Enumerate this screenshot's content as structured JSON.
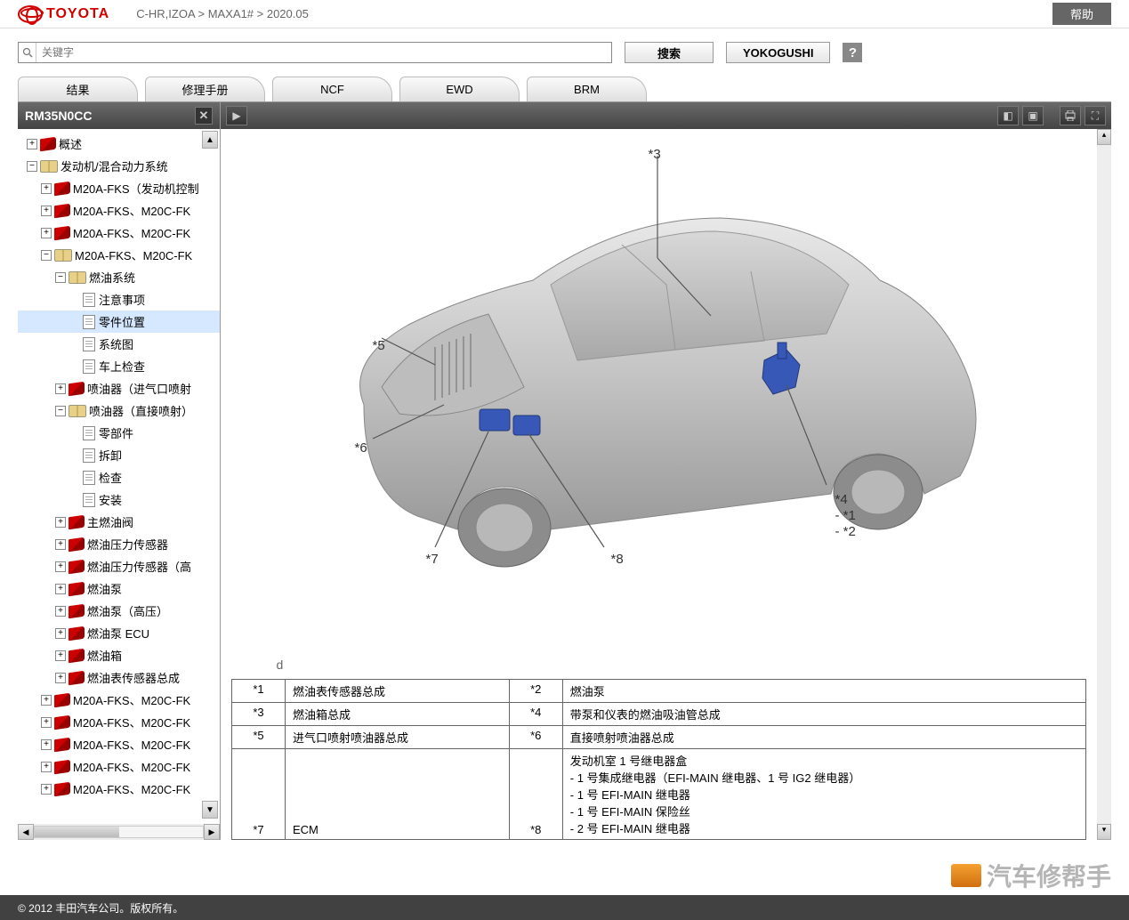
{
  "header": {
    "brand": "TOYOTA",
    "breadcrumb": "C-HR,IZOA > MAXA1# > 2020.05",
    "help": "帮助"
  },
  "search": {
    "placeholder": "关键字",
    "searchBtn": "搜索",
    "yokogushi": "YOKOGUSHI",
    "helpIcon": "?"
  },
  "tabs": [
    "结果",
    "修理手册",
    "NCF",
    "EWD",
    "BRM"
  ],
  "sidebar": {
    "title": "RM35N0CC",
    "tree": [
      {
        "lvl": 0,
        "exp": "+",
        "icon": "red",
        "label": "概述"
      },
      {
        "lvl": 0,
        "exp": "-",
        "icon": "open",
        "label": "发动机/混合动力系统"
      },
      {
        "lvl": 1,
        "exp": "+",
        "icon": "red",
        "label": "M20A-FKS（发动机控制"
      },
      {
        "lvl": 1,
        "exp": "+",
        "icon": "red",
        "label": "M20A-FKS、M20C-FK"
      },
      {
        "lvl": 1,
        "exp": "+",
        "icon": "red",
        "label": "M20A-FKS、M20C-FK"
      },
      {
        "lvl": 1,
        "exp": "-",
        "icon": "open",
        "label": "M20A-FKS、M20C-FK"
      },
      {
        "lvl": 2,
        "exp": "-",
        "icon": "open",
        "label": "燃油系统"
      },
      {
        "lvl": 3,
        "exp": "",
        "icon": "page",
        "label": "注意事项"
      },
      {
        "lvl": 3,
        "exp": "",
        "icon": "page",
        "label": "零件位置",
        "selected": true
      },
      {
        "lvl": 3,
        "exp": "",
        "icon": "page",
        "label": "系统图"
      },
      {
        "lvl": 3,
        "exp": "",
        "icon": "page",
        "label": "车上检查"
      },
      {
        "lvl": 2,
        "exp": "+",
        "icon": "red",
        "label": "喷油器（进气口喷射"
      },
      {
        "lvl": 2,
        "exp": "-",
        "icon": "open",
        "label": "喷油器（直接喷射）"
      },
      {
        "lvl": 3,
        "exp": "",
        "icon": "page",
        "label": "零部件"
      },
      {
        "lvl": 3,
        "exp": "",
        "icon": "page",
        "label": "拆卸"
      },
      {
        "lvl": 3,
        "exp": "",
        "icon": "page",
        "label": "检查"
      },
      {
        "lvl": 3,
        "exp": "",
        "icon": "page",
        "label": "安装"
      },
      {
        "lvl": 2,
        "exp": "+",
        "icon": "red",
        "label": "主燃油阀"
      },
      {
        "lvl": 2,
        "exp": "+",
        "icon": "red",
        "label": "燃油压力传感器"
      },
      {
        "lvl": 2,
        "exp": "+",
        "icon": "red",
        "label": "燃油压力传感器（高"
      },
      {
        "lvl": 2,
        "exp": "+",
        "icon": "red",
        "label": "燃油泵"
      },
      {
        "lvl": 2,
        "exp": "+",
        "icon": "red",
        "label": "燃油泵（高压）"
      },
      {
        "lvl": 2,
        "exp": "+",
        "icon": "red",
        "label": "燃油泵 ECU"
      },
      {
        "lvl": 2,
        "exp": "+",
        "icon": "red",
        "label": "燃油箱"
      },
      {
        "lvl": 2,
        "exp": "+",
        "icon": "red",
        "label": "燃油表传感器总成"
      },
      {
        "lvl": 1,
        "exp": "+",
        "icon": "red",
        "label": "M20A-FKS、M20C-FK"
      },
      {
        "lvl": 1,
        "exp": "+",
        "icon": "red",
        "label": "M20A-FKS、M20C-FK"
      },
      {
        "lvl": 1,
        "exp": "+",
        "icon": "red",
        "label": "M20A-FKS、M20C-FK"
      },
      {
        "lvl": 1,
        "exp": "+",
        "icon": "red",
        "label": "M20A-FKS、M20C-FK"
      },
      {
        "lvl": 1,
        "exp": "+",
        "icon": "red",
        "label": "M20A-FKS、M20C-FK"
      }
    ]
  },
  "diagram": {
    "callouts": {
      "c3": "*3",
      "c4": "*4",
      "c4b": "- *1",
      "c4c": "- *2",
      "c5": "*5",
      "c6": "*6",
      "c7": "*7",
      "c8": "*8"
    },
    "corner": "d"
  },
  "legend": [
    {
      "k1": "*1",
      "v1": "燃油表传感器总成",
      "k2": "*2",
      "v2": "燃油泵"
    },
    {
      "k1": "*3",
      "v1": "燃油箱总成",
      "k2": "*4",
      "v2": "带泵和仪表的燃油吸油管总成"
    },
    {
      "k1": "*5",
      "v1": "进气口喷射喷油器总成",
      "k2": "*6",
      "v2": "直接喷射喷油器总成"
    },
    {
      "k1": "*7",
      "v1": "ECM",
      "k2": "*8",
      "v2": "发动机室 1 号继电器盒\n- 1 号集成继电器（EFI-MAIN 继电器、1 号 IG2 继电器）\n- 1 号 EFI-MAIN 继电器\n- 1 号 EFI-MAIN 保险丝\n- 2 号 EFI-MAIN 继电器"
    }
  ],
  "footer": "© 2012 丰田汽车公司。版权所有。",
  "watermark": "汽车修帮手",
  "colors": {
    "brand": "#d20000",
    "toolbar": "#555",
    "part": "#3858b8"
  }
}
